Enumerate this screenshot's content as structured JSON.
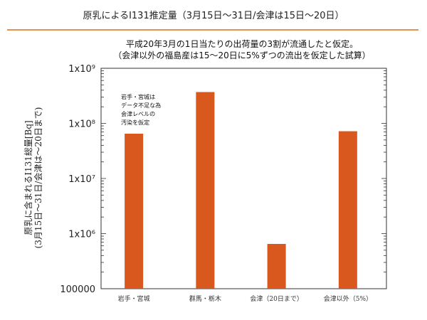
{
  "slide": {
    "title": "原乳によるI131推定量（3月15日～31日/会津は15日～20日）",
    "accent_color": "#e8914f"
  },
  "chart_data": {
    "type": "bar",
    "title_lines": [
      "平成20年3月の1日当たりの出荷量の3割が流通したと仮定。",
      "（会津以外の福島産は15～20日に5%ずつの流出を仮定した試算）"
    ],
    "ylabel_lines": [
      "原乳に含まれるI131総量[Bq]",
      "(3月15日～31日/会津は～20日まで)"
    ],
    "yscale": "log",
    "ylim": [
      100000,
      1000000000
    ],
    "y_ticks": [
      {
        "value": 100000,
        "label": "100000"
      },
      {
        "value": 1000000,
        "label": "1x10⁶"
      },
      {
        "value": 10000000,
        "label": "1x10⁷"
      },
      {
        "value": 100000000,
        "label": "1x10⁸"
      },
      {
        "value": 1000000000,
        "label": "1x10⁹"
      }
    ],
    "categories": [
      "岩手・宮城",
      "群馬・栃木",
      "会津（20日まで）",
      "会津以外（5%）"
    ],
    "values": [
      65000000,
      370000000,
      650000,
      72000000
    ],
    "bar_color": "#d9581e",
    "annotation": {
      "category_index": 0,
      "lines": [
        "岩手・宮城は",
        "データ不足な為",
        "会津レベルの",
        "汚染を仮定"
      ]
    },
    "grid": false
  }
}
